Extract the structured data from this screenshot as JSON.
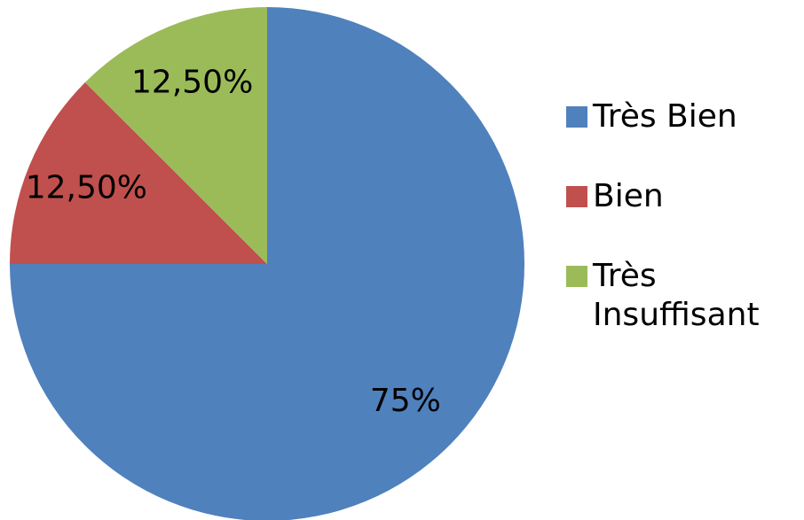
{
  "chart_data": {
    "type": "pie",
    "categories": [
      "Très Bien",
      "Bien",
      "Très Insuffisant"
    ],
    "values": [
      75,
      12.5,
      12.5
    ],
    "value_labels": [
      "75%",
      "12,50%",
      "12,50%"
    ],
    "colors": [
      "#4f81bd",
      "#c0504d",
      "#9bbb59"
    ],
    "legend": "right"
  }
}
